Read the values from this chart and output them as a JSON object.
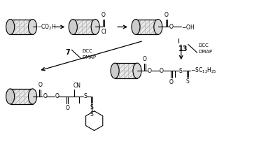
{
  "bg": "#ffffff",
  "lc": "#000000",
  "fw": 3.8,
  "fh": 2.33,
  "dpi": 100,
  "xlim": [
    0,
    38
  ],
  "ylim": [
    0,
    23.3
  ]
}
